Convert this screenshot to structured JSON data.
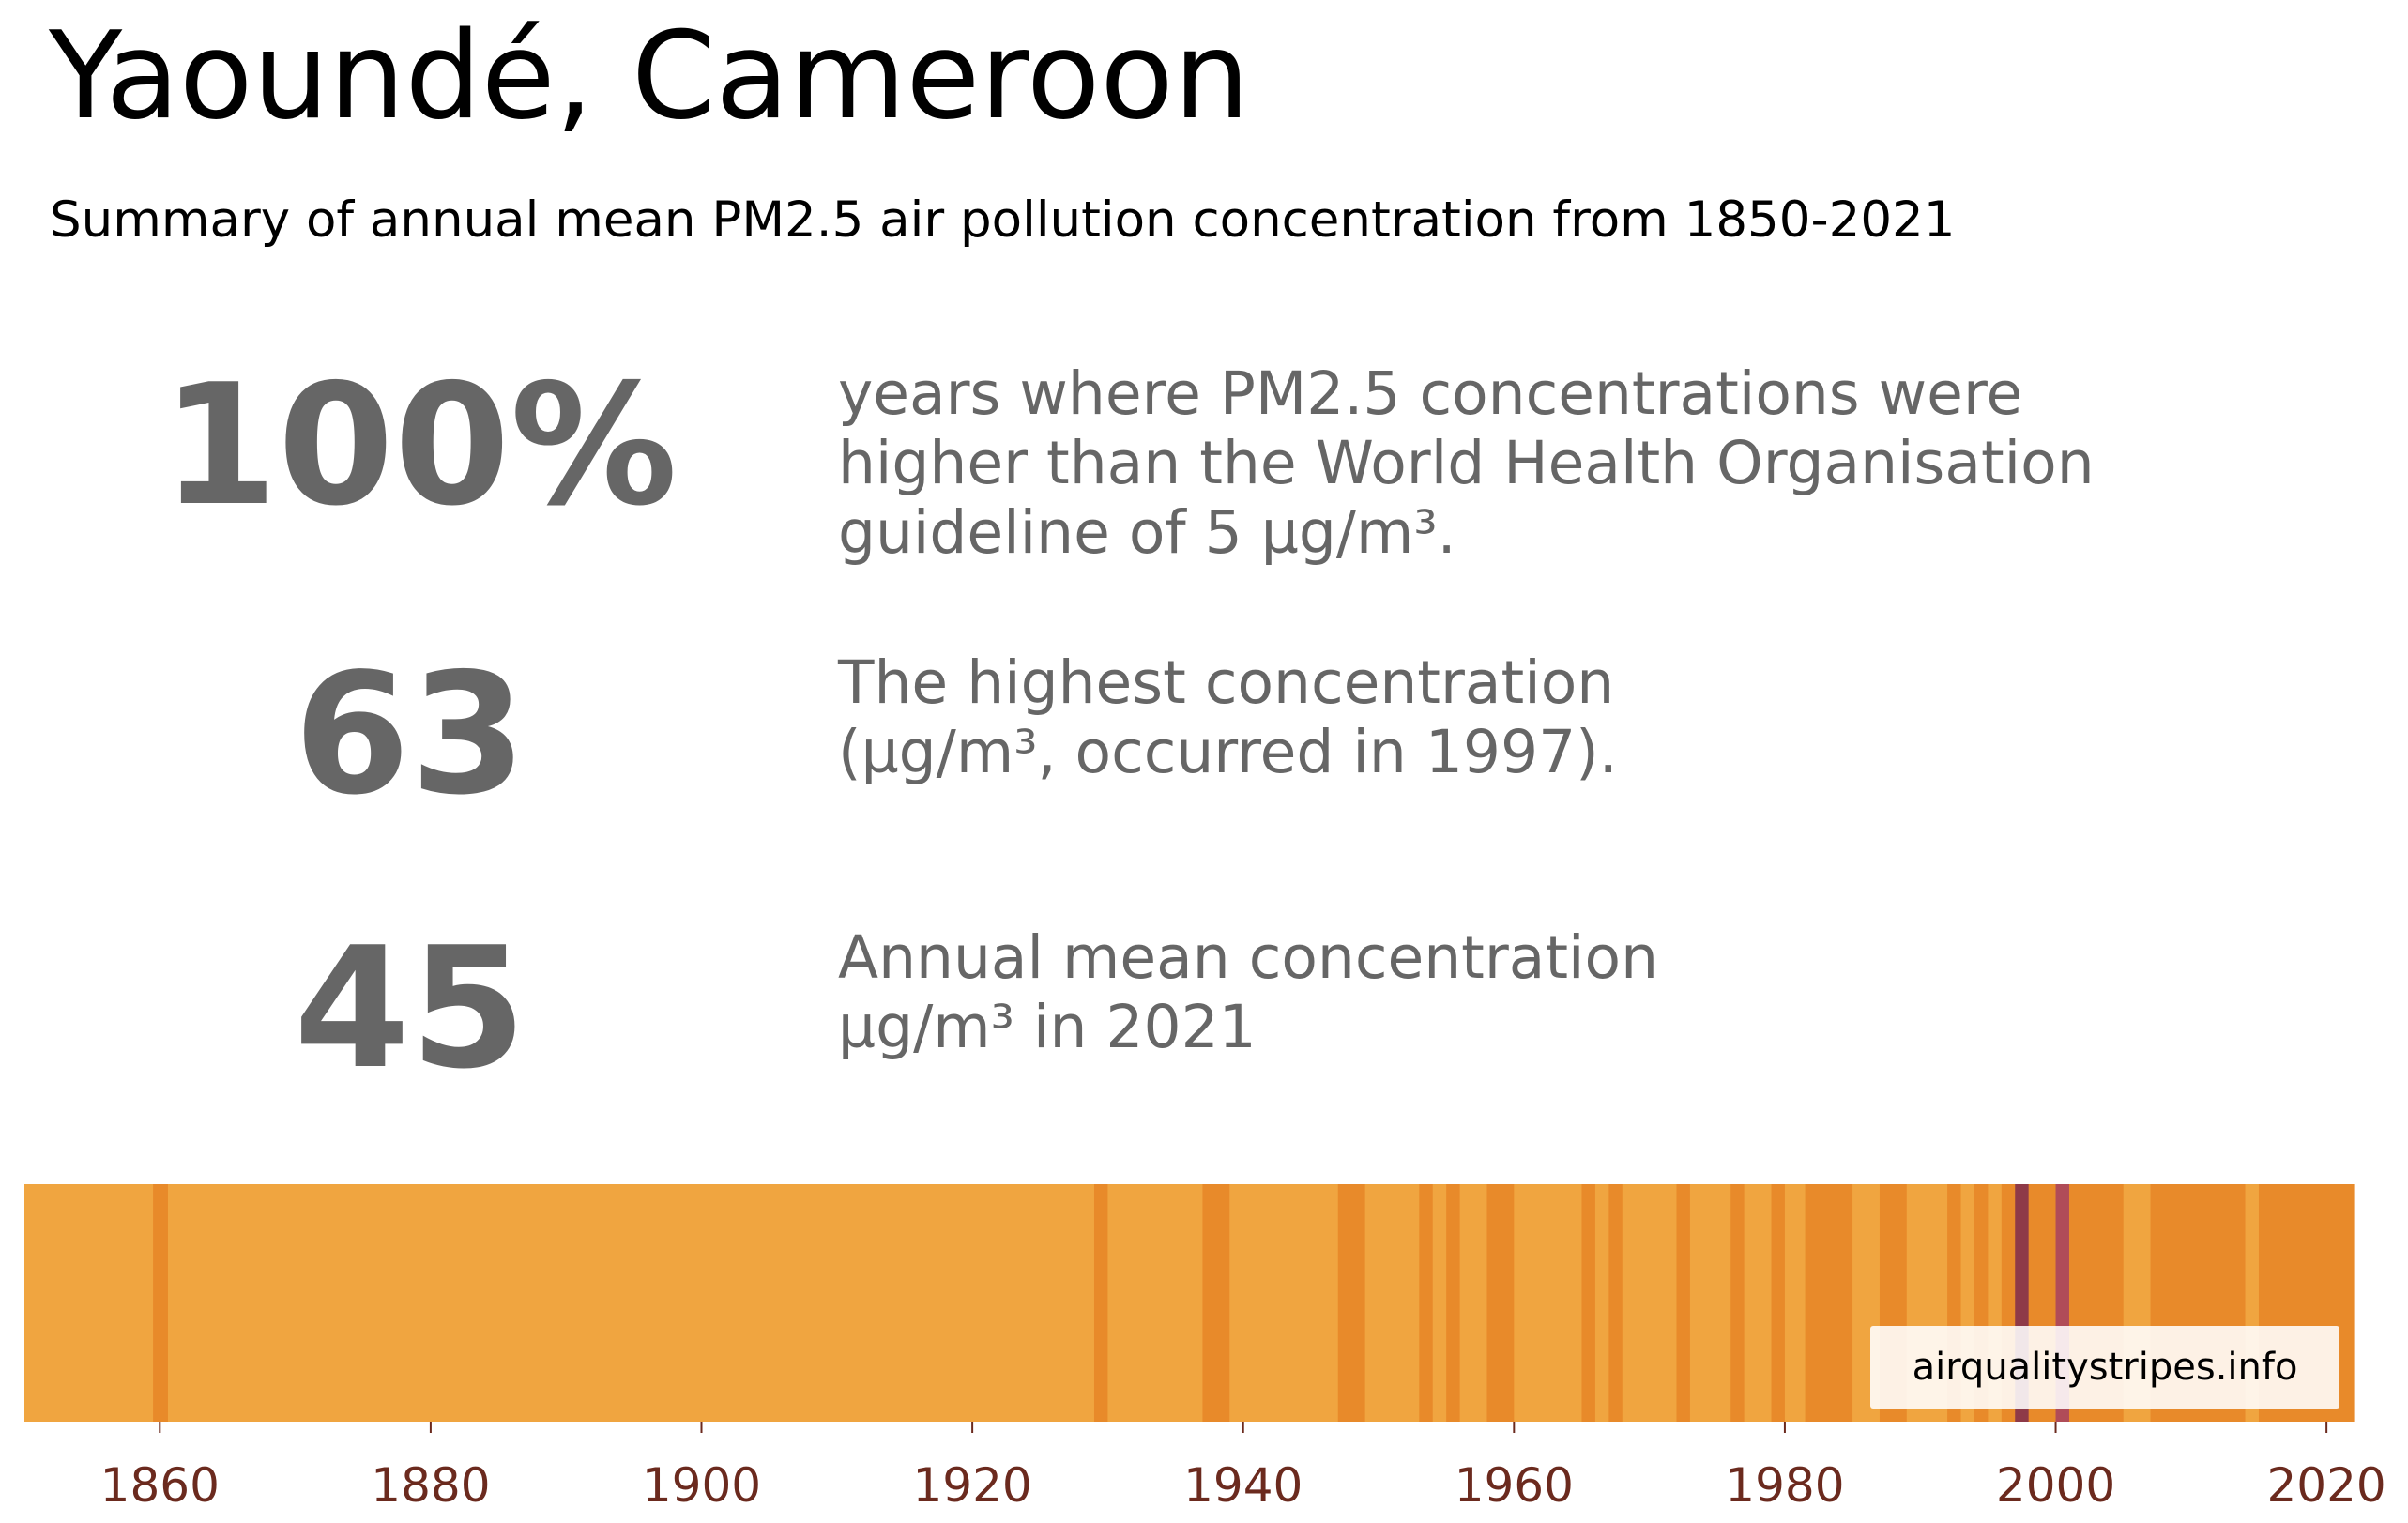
{
  "header": {
    "title": "Yaoundé, Cameroon",
    "subtitle": "Summary of annual mean PM2.5 air pollution concentration from 1850-2021"
  },
  "stats": [
    {
      "value": "100%",
      "lines": [
        "years where PM2.5 concentrations were",
        "higher than the World Health Organisation",
        "guideline of 5 µg/m³."
      ]
    },
    {
      "value": "63",
      "lines": [
        "The highest concentration",
        "(µg/m³, occurred in 1997)."
      ]
    },
    {
      "value": "45",
      "lines": [
        "Annual mean concentration",
        "µg/m³ in 2021"
      ]
    }
  ],
  "watermark": "airqualitystripes.info",
  "colors": {
    "text_gray": "#666666",
    "tick_label": "#6b2a1e",
    "stripe_light": "#f0a540",
    "stripe_medium": "#e88a2a",
    "stripe_dark": "#8e3a48",
    "stripe_peak": "#b04c58"
  },
  "chart_data": {
    "type": "heatmap",
    "x_start": 1850,
    "x_end": 2022,
    "xticks": [
      "1860",
      "1880",
      "1900",
      "1920",
      "1940",
      "1960",
      "1980",
      "2000",
      "2020"
    ],
    "xtick_values": [
      1860,
      1880,
      1900,
      1920,
      1940,
      1960,
      1980,
      2000,
      2020
    ],
    "stripes": [
      {
        "start": 1850,
        "end": 1859.5,
        "level": "light"
      },
      {
        "start": 1859.5,
        "end": 1860.6,
        "level": "medium"
      },
      {
        "start": 1860.6,
        "end": 1929,
        "level": "light"
      },
      {
        "start": 1929,
        "end": 1930,
        "level": "medium"
      },
      {
        "start": 1930,
        "end": 1937,
        "level": "light"
      },
      {
        "start": 1937,
        "end": 1939,
        "level": "medium"
      },
      {
        "start": 1939,
        "end": 1947,
        "level": "light"
      },
      {
        "start": 1947,
        "end": 1949,
        "level": "medium"
      },
      {
        "start": 1949,
        "end": 1953,
        "level": "light"
      },
      {
        "start": 1953,
        "end": 1954,
        "level": "medium"
      },
      {
        "start": 1954,
        "end": 1955,
        "level": "light"
      },
      {
        "start": 1955,
        "end": 1956,
        "level": "medium"
      },
      {
        "start": 1956,
        "end": 1958,
        "level": "light"
      },
      {
        "start": 1958,
        "end": 1960,
        "level": "medium"
      },
      {
        "start": 1960,
        "end": 1965,
        "level": "light"
      },
      {
        "start": 1965,
        "end": 1966,
        "level": "medium"
      },
      {
        "start": 1966,
        "end": 1967,
        "level": "light"
      },
      {
        "start": 1967,
        "end": 1968,
        "level": "medium"
      },
      {
        "start": 1968,
        "end": 1972,
        "level": "light"
      },
      {
        "start": 1972,
        "end": 1973,
        "level": "medium"
      },
      {
        "start": 1973,
        "end": 1976,
        "level": "light"
      },
      {
        "start": 1976,
        "end": 1977,
        "level": "medium"
      },
      {
        "start": 1977,
        "end": 1979,
        "level": "light"
      },
      {
        "start": 1979,
        "end": 1980,
        "level": "medium"
      },
      {
        "start": 1980,
        "end": 1981.5,
        "level": "light"
      },
      {
        "start": 1981.5,
        "end": 1985,
        "level": "medium"
      },
      {
        "start": 1985,
        "end": 1987,
        "level": "light"
      },
      {
        "start": 1987,
        "end": 1989,
        "level": "medium"
      },
      {
        "start": 1989,
        "end": 1992,
        "level": "light"
      },
      {
        "start": 1992,
        "end": 1993,
        "level": "medium"
      },
      {
        "start": 1993,
        "end": 1994,
        "level": "light"
      },
      {
        "start": 1994,
        "end": 1995,
        "level": "medium"
      },
      {
        "start": 1995,
        "end": 1996,
        "level": "light"
      },
      {
        "start": 1996,
        "end": 1997,
        "level": "medium"
      },
      {
        "start": 1997,
        "end": 1998,
        "level": "dark"
      },
      {
        "start": 1998,
        "end": 2000,
        "level": "medium"
      },
      {
        "start": 2000,
        "end": 2001,
        "level": "peak"
      },
      {
        "start": 2001,
        "end": 2005,
        "level": "medium"
      },
      {
        "start": 2005,
        "end": 2007,
        "level": "light"
      },
      {
        "start": 2007,
        "end": 2014,
        "level": "medium"
      },
      {
        "start": 2014,
        "end": 2015,
        "level": "light"
      },
      {
        "start": 2015,
        "end": 2022,
        "level": "medium"
      }
    ]
  }
}
